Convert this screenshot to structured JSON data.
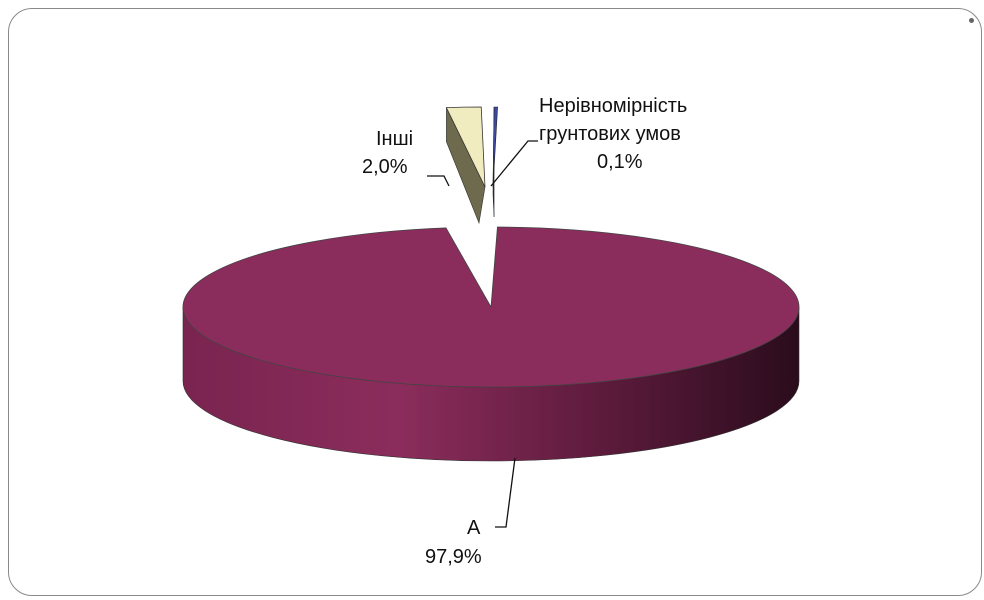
{
  "chart_data": {
    "type": "pie",
    "style": "3d-exploded",
    "slices": [
      {
        "label": "А",
        "value": 97.9,
        "value_text": "97,9%",
        "color": "#8b2d5c"
      },
      {
        "label": "Інші",
        "value": 2.0,
        "value_text": "2,0%",
        "color": "#f0ecc0"
      },
      {
        "label_lines": [
          "Нерівномірність",
          "грунтових умов"
        ],
        "value": 0.1,
        "value_text": "0,1%",
        "color": "#3b4aa0"
      }
    ],
    "legend": "none"
  }
}
